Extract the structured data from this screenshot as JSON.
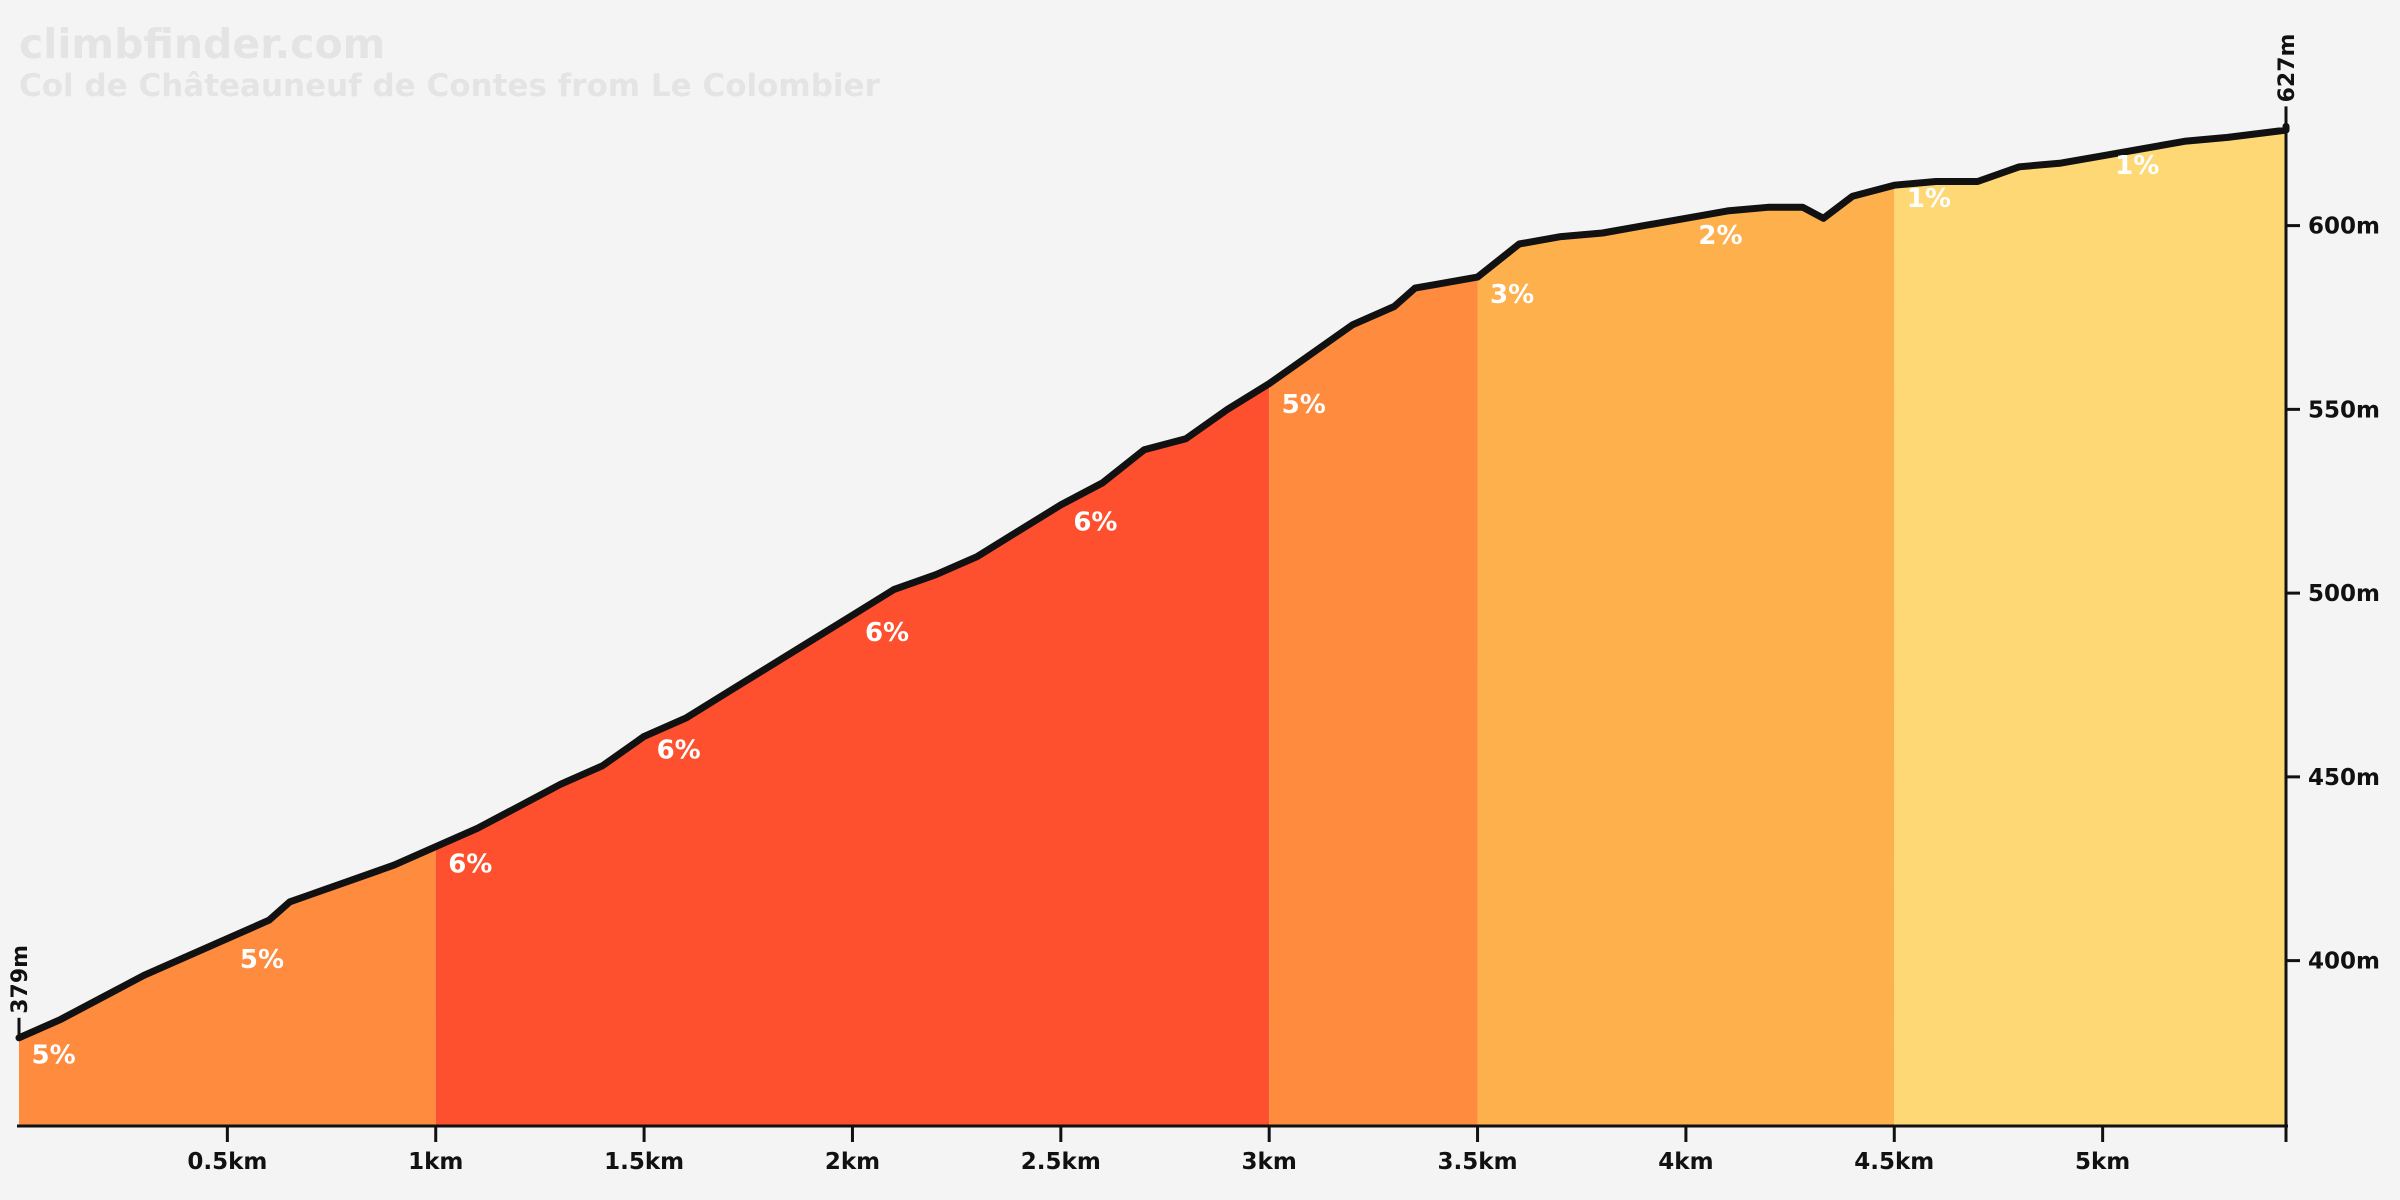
{
  "header": {
    "site": "climbfinder.com",
    "title": "Col de Châteauneuf de Contes from Le Colombier"
  },
  "chart_data": {
    "type": "area",
    "title": "Col de Châteauneuf de Contes from Le Colombier",
    "xlabel": "",
    "ylabel": "",
    "x_unit": "km",
    "y_unit": "m",
    "xlim": [
      0,
      5.44
    ],
    "ylim": [
      355,
      632
    ],
    "x_ticks": [
      {
        "value": 0.5,
        "label": "0.5km"
      },
      {
        "value": 1,
        "label": "1km"
      },
      {
        "value": 1.5,
        "label": "1.5km"
      },
      {
        "value": 2,
        "label": "2km"
      },
      {
        "value": 2.5,
        "label": "2.5km"
      },
      {
        "value": 3,
        "label": "3km"
      },
      {
        "value": 3.5,
        "label": "3.5km"
      },
      {
        "value": 4,
        "label": "4km"
      },
      {
        "value": 4.5,
        "label": "4.5km"
      },
      {
        "value": 5,
        "label": "5km"
      }
    ],
    "y_ticks": [
      {
        "value": 400,
        "label": "400m"
      },
      {
        "value": 450,
        "label": "450m"
      },
      {
        "value": 500,
        "label": "500m"
      },
      {
        "value": 550,
        "label": "550m"
      },
      {
        "value": 600,
        "label": "600m"
      }
    ],
    "start": {
      "x": 0,
      "elevation": 379,
      "label": "379m"
    },
    "end": {
      "x": 5.44,
      "elevation": 627,
      "label": "627m"
    },
    "segments": [
      {
        "from": 0,
        "to": 1,
        "grade": 5,
        "color": "#fe8b3e"
      },
      {
        "from": 1,
        "to": 3,
        "grade": 6,
        "color": "#fe502e"
      },
      {
        "from": 3,
        "to": 3.5,
        "grade": 5,
        "color": "#fe8b3e"
      },
      {
        "from": 3.5,
        "to": 4.5,
        "grade": 2,
        "color": "#feb04d"
      },
      {
        "from": 4.5,
        "to": 5.44,
        "grade": 1,
        "color": "#fed874"
      }
    ],
    "grade_labels": [
      {
        "x": 0.03,
        "elevation": 372,
        "label": "5%"
      },
      {
        "x": 0.53,
        "elevation": 398,
        "label": "5%"
      },
      {
        "x": 1.03,
        "elevation": 424,
        "label": "6%"
      },
      {
        "x": 1.53,
        "elevation": 455,
        "label": "6%"
      },
      {
        "x": 2.03,
        "elevation": 487,
        "label": "6%"
      },
      {
        "x": 2.53,
        "elevation": 517,
        "label": "6%"
      },
      {
        "x": 3.03,
        "elevation": 549,
        "label": "5%"
      },
      {
        "x": 3.53,
        "elevation": 579,
        "label": "3%"
      },
      {
        "x": 4.03,
        "elevation": 595,
        "label": "2%"
      },
      {
        "x": 4.53,
        "elevation": 605,
        "label": "1%"
      },
      {
        "x": 5.03,
        "elevation": 614,
        "label": "1%"
      }
    ],
    "profile": [
      [
        0,
        379
      ],
      [
        0.1,
        384
      ],
      [
        0.2,
        390
      ],
      [
        0.3,
        396
      ],
      [
        0.4,
        401
      ],
      [
        0.5,
        406
      ],
      [
        0.6,
        411
      ],
      [
        0.65,
        416
      ],
      [
        0.7,
        418
      ],
      [
        0.8,
        422
      ],
      [
        0.9,
        426
      ],
      [
        1,
        431
      ],
      [
        1.1,
        436
      ],
      [
        1.2,
        442
      ],
      [
        1.3,
        448
      ],
      [
        1.4,
        453
      ],
      [
        1.5,
        461
      ],
      [
        1.6,
        466
      ],
      [
        1.7,
        473
      ],
      [
        1.8,
        480
      ],
      [
        1.9,
        487
      ],
      [
        2,
        494
      ],
      [
        2.1,
        501
      ],
      [
        2.2,
        505
      ],
      [
        2.3,
        510
      ],
      [
        2.4,
        517
      ],
      [
        2.5,
        524
      ],
      [
        2.6,
        530
      ],
      [
        2.7,
        539
      ],
      [
        2.8,
        542
      ],
      [
        2.9,
        550
      ],
      [
        3,
        557
      ],
      [
        3.1,
        565
      ],
      [
        3.2,
        573
      ],
      [
        3.3,
        578
      ],
      [
        3.35,
        583
      ],
      [
        3.4,
        584
      ],
      [
        3.5,
        586
      ],
      [
        3.6,
        595
      ],
      [
        3.7,
        597
      ],
      [
        3.8,
        598
      ],
      [
        3.9,
        600
      ],
      [
        4,
        602
      ],
      [
        4.1,
        604
      ],
      [
        4.2,
        605
      ],
      [
        4.28,
        605
      ],
      [
        4.33,
        602
      ],
      [
        4.4,
        608
      ],
      [
        4.5,
        611
      ],
      [
        4.6,
        612
      ],
      [
        4.7,
        612
      ],
      [
        4.8,
        616
      ],
      [
        4.9,
        617
      ],
      [
        5,
        619
      ],
      [
        5.1,
        621
      ],
      [
        5.2,
        623
      ],
      [
        5.3,
        624
      ],
      [
        5.44,
        626
      ],
      [
        5.44,
        627
      ]
    ]
  }
}
